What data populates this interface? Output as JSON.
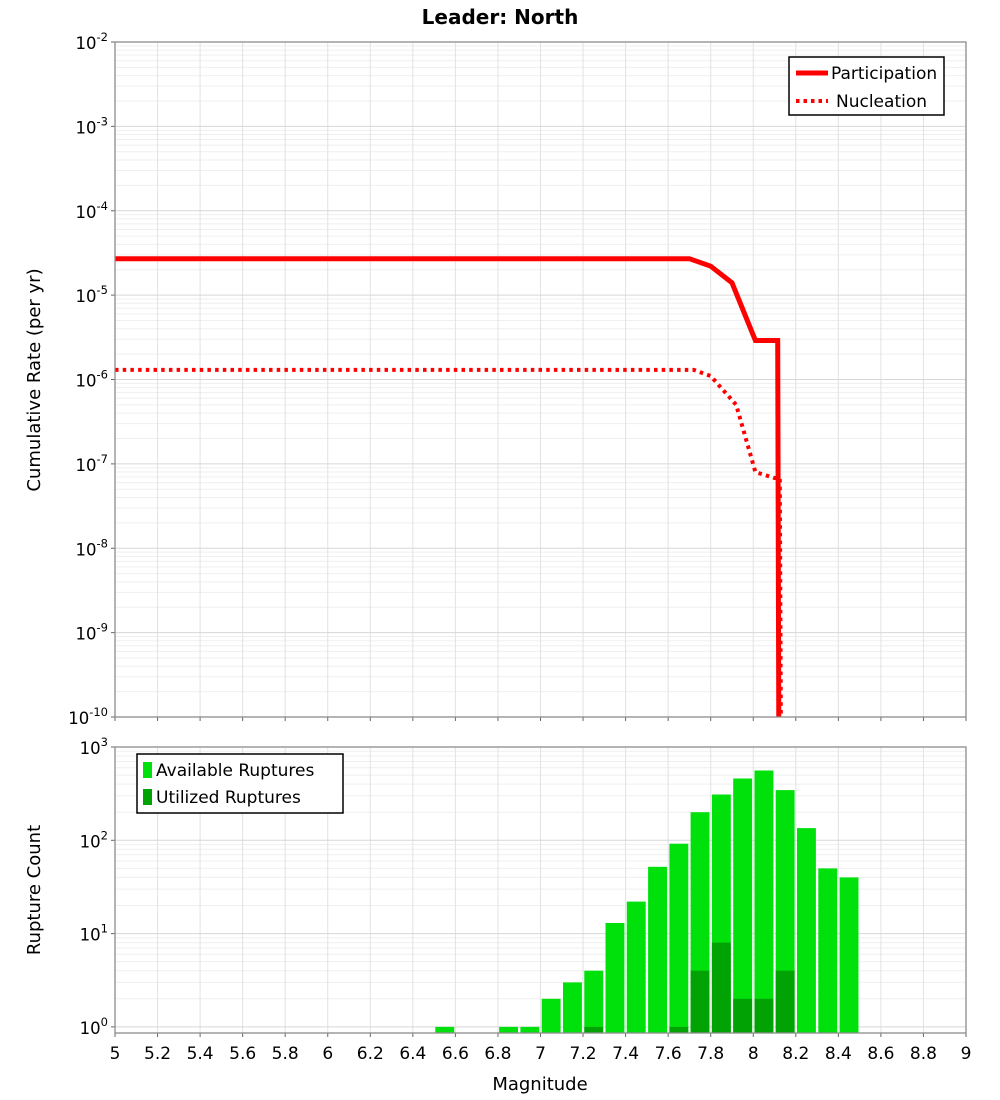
{
  "title": "Leader: North",
  "chart_data": [
    {
      "type": "line",
      "title": "Leader: North",
      "ylabel": "Cumulative Rate (per yr)",
      "xlim": [
        5,
        9
      ],
      "ylim": [
        1e-10,
        0.01
      ],
      "grid": true,
      "legend_position": "top-right",
      "y_tick_exponents": [
        -2,
        -3,
        -4,
        -5,
        -6,
        -7,
        -8,
        -9,
        -10
      ],
      "x_tick_labels": [
        "5",
        "5.2",
        "5.4",
        "5.6",
        "5.8",
        "6",
        "6.2",
        "6.4",
        "6.6",
        "6.8",
        "7",
        "7.2",
        "7.4",
        "7.6",
        "7.8",
        "8",
        "8.2",
        "8.4",
        "8.6",
        "8.8",
        "9"
      ],
      "series": [
        {
          "name": "Participation",
          "color": "#ff0000",
          "line_style": "solid",
          "points": [
            [
              5.0,
              2.7e-05
            ],
            [
              7.7,
              2.7e-05
            ],
            [
              7.8,
              2.2e-05
            ],
            [
              7.9,
              1.4e-05
            ],
            [
              8.01,
              2.9e-06
            ],
            [
              8.115,
              2.9e-06
            ],
            [
              8.12,
              1e-11
            ]
          ]
        },
        {
          "name": "Nucleation",
          "color": "#ff0000",
          "line_style": "dotted",
          "points": [
            [
              5.0,
              1.3e-06
            ],
            [
              7.72,
              1.3e-06
            ],
            [
              7.8,
              1.1e-06
            ],
            [
              7.92,
              5e-07
            ],
            [
              8.01,
              8e-08
            ],
            [
              8.1,
              6.8e-08
            ],
            [
              8.125,
              6.8e-08
            ],
            [
              8.13,
              1e-11
            ]
          ]
        }
      ]
    },
    {
      "type": "bar",
      "ylabel": "Rupture Count",
      "xlabel": "Magnitude",
      "xlim": [
        5,
        9
      ],
      "ylim": [
        0.86,
        1000
      ],
      "grid": true,
      "legend_position": "top-left",
      "bin_width": 0.1,
      "y_tick_exponents": [
        0,
        1,
        2,
        3
      ],
      "x_tick_labels": [
        "5",
        "5.2",
        "5.4",
        "5.6",
        "5.8",
        "6",
        "6.2",
        "6.4",
        "6.6",
        "6.8",
        "7",
        "7.2",
        "7.4",
        "7.6",
        "7.8",
        "8",
        "8.2",
        "8.4",
        "8.6",
        "8.8",
        "9"
      ],
      "series": [
        {
          "name": "Available Ruptures",
          "color": "#00e10c",
          "bins": [
            {
              "start": 6.5,
              "count": 1
            },
            {
              "start": 6.8,
              "count": 1
            },
            {
              "start": 6.9,
              "count": 1
            },
            {
              "start": 7.0,
              "count": 2
            },
            {
              "start": 7.1,
              "count": 3
            },
            {
              "start": 7.2,
              "count": 4
            },
            {
              "start": 7.3,
              "count": 13
            },
            {
              "start": 7.4,
              "count": 22
            },
            {
              "start": 7.5,
              "count": 52
            },
            {
              "start": 7.6,
              "count": 92
            },
            {
              "start": 7.7,
              "count": 200
            },
            {
              "start": 7.8,
              "count": 310
            },
            {
              "start": 7.9,
              "count": 460
            },
            {
              "start": 8.0,
              "count": 560
            },
            {
              "start": 8.1,
              "count": 345
            },
            {
              "start": 8.2,
              "count": 135
            },
            {
              "start": 8.3,
              "count": 50
            },
            {
              "start": 8.4,
              "count": 40
            }
          ]
        },
        {
          "name": "Utilized Ruptures",
          "color": "#00a303",
          "bins": [
            {
              "start": 7.2,
              "count": 1
            },
            {
              "start": 7.6,
              "count": 1
            },
            {
              "start": 7.7,
              "count": 4
            },
            {
              "start": 7.8,
              "count": 8
            },
            {
              "start": 7.9,
              "count": 2
            },
            {
              "start": 8.0,
              "count": 2
            },
            {
              "start": 8.1,
              "count": 4
            }
          ]
        }
      ]
    }
  ]
}
